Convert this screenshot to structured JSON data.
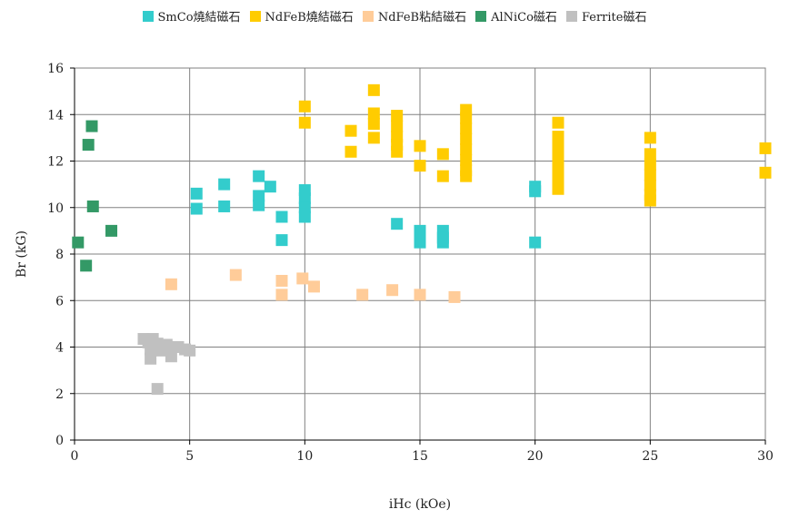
{
  "chart_data": {
    "type": "scatter",
    "xlabel": "iHc (kOe)",
    "ylabel": "Br (kG)",
    "xlim": [
      0,
      30
    ],
    "ylim": [
      0,
      16
    ],
    "xticks": [
      0,
      5,
      10,
      15,
      20,
      25,
      30
    ],
    "yticks": [
      0,
      2,
      4,
      6,
      8,
      10,
      12,
      14,
      16
    ],
    "grid": true,
    "legend_position": "top",
    "series": [
      {
        "name": "SmCo燒結磁石",
        "color": "#33cccc",
        "points": [
          [
            5.3,
            10.6
          ],
          [
            5.3,
            9.95
          ],
          [
            6.5,
            11.0
          ],
          [
            6.5,
            10.05
          ],
          [
            8.0,
            11.35
          ],
          [
            8.0,
            10.5
          ],
          [
            8.0,
            10.1
          ],
          [
            8.5,
            10.9
          ],
          [
            9.0,
            9.6
          ],
          [
            9.0,
            8.6
          ],
          [
            10.0,
            10.75
          ],
          [
            10.0,
            10.4
          ],
          [
            10.0,
            10.0
          ],
          [
            10.0,
            9.6
          ],
          [
            14.0,
            9.3
          ],
          [
            15.0,
            9.0
          ],
          [
            15.0,
            8.8
          ],
          [
            15.0,
            8.5
          ],
          [
            16.0,
            9.0
          ],
          [
            16.0,
            8.7
          ],
          [
            16.0,
            8.5
          ],
          [
            20.0,
            10.9
          ],
          [
            20.0,
            10.7
          ],
          [
            20.0,
            8.5
          ]
        ]
      },
      {
        "name": "NdFeB燒結磁石",
        "color": "#ffcc00",
        "points": [
          [
            10.0,
            14.35
          ],
          [
            10.0,
            13.65
          ],
          [
            12.0,
            13.3
          ],
          [
            12.0,
            12.4
          ],
          [
            13.0,
            15.05
          ],
          [
            13.0,
            14.05
          ],
          [
            13.0,
            13.6
          ],
          [
            13.0,
            13.0
          ],
          [
            14.0,
            13.95
          ],
          [
            14.0,
            13.5
          ],
          [
            14.0,
            13.05
          ],
          [
            14.0,
            12.7
          ],
          [
            14.0,
            12.4
          ],
          [
            15.0,
            12.65
          ],
          [
            15.0,
            11.8
          ],
          [
            16.0,
            12.3
          ],
          [
            16.0,
            11.35
          ],
          [
            17.0,
            14.2
          ],
          [
            17.0,
            13.85
          ],
          [
            17.0,
            13.4
          ],
          [
            17.0,
            12.95
          ],
          [
            17.0,
            12.5
          ],
          [
            17.0,
            12.05
          ],
          [
            17.0,
            11.6
          ],
          [
            17.0,
            11.35
          ],
          [
            21.0,
            13.65
          ],
          [
            21.0,
            13.05
          ],
          [
            21.0,
            12.6
          ],
          [
            21.0,
            12.15
          ],
          [
            21.0,
            11.7
          ],
          [
            21.0,
            11.25
          ],
          [
            21.0,
            10.8
          ],
          [
            25.0,
            13.0
          ],
          [
            25.0,
            12.3
          ],
          [
            25.0,
            11.85
          ],
          [
            25.0,
            11.4
          ],
          [
            25.0,
            10.95
          ],
          [
            25.0,
            10.55
          ],
          [
            25.0,
            10.3
          ],
          [
            30.0,
            12.55
          ],
          [
            30.0,
            11.5
          ]
        ]
      },
      {
        "name": "NdFeB粘結磁石",
        "color": "#ffcc99",
        "points": [
          [
            4.2,
            6.7
          ],
          [
            7.0,
            7.1
          ],
          [
            9.0,
            6.85
          ],
          [
            9.0,
            6.25
          ],
          [
            9.9,
            6.95
          ],
          [
            10.4,
            6.6
          ],
          [
            12.5,
            6.25
          ],
          [
            13.8,
            6.45
          ],
          [
            15.0,
            6.25
          ],
          [
            16.5,
            6.15
          ]
        ]
      },
      {
        "name": "AlNiCo磁石",
        "color": "#339966",
        "points": [
          [
            0.15,
            8.5
          ],
          [
            0.5,
            7.5
          ],
          [
            0.6,
            12.7
          ],
          [
            0.75,
            13.5
          ],
          [
            0.8,
            10.05
          ],
          [
            1.6,
            9.0
          ]
        ]
      },
      {
        "name": "Ferrite磁石",
        "color": "#c0c0c0",
        "points": [
          [
            3.0,
            4.35
          ],
          [
            3.2,
            4.2
          ],
          [
            3.3,
            3.9
          ],
          [
            3.3,
            3.5
          ],
          [
            3.4,
            4.35
          ],
          [
            3.6,
            4.15
          ],
          [
            3.7,
            3.85
          ],
          [
            3.6,
            2.2
          ],
          [
            4.0,
            4.1
          ],
          [
            4.1,
            3.9
          ],
          [
            4.2,
            3.6
          ],
          [
            4.5,
            4.0
          ],
          [
            4.8,
            3.9
          ],
          [
            5.0,
            3.85
          ]
        ]
      }
    ]
  }
}
